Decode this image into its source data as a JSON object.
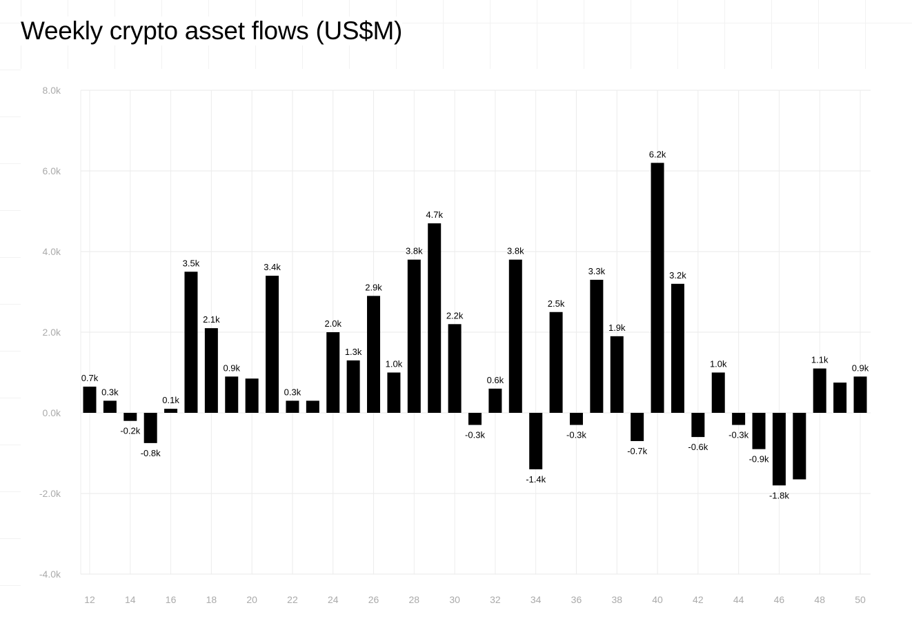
{
  "chart_data": {
    "type": "bar",
    "title": "Weekly crypto asset flows (US$M)",
    "xlabel": "",
    "ylabel": "",
    "ylim": [
      -4.0,
      8.0
    ],
    "yticks": [
      "8.0k",
      "6.0k",
      "4.0k",
      "2.0k",
      "0.0k",
      "-2.0k",
      "-4.0k"
    ],
    "ytick_values": [
      8,
      6,
      4,
      2,
      0,
      -2,
      -4
    ],
    "xticks": [
      "12",
      "14",
      "16",
      "18",
      "20",
      "22",
      "24",
      "26",
      "28",
      "30",
      "32",
      "34",
      "36",
      "38",
      "40",
      "42",
      "44",
      "46",
      "48",
      "50"
    ],
    "grid": true,
    "bar_color": "#000000",
    "categories": [
      "12",
      "13",
      "14",
      "15",
      "16",
      "17",
      "18",
      "19",
      "20",
      "21",
      "22",
      "23",
      "24",
      "25",
      "26",
      "27",
      "28",
      "29",
      "30",
      "31",
      "32",
      "33",
      "34",
      "35",
      "36",
      "37",
      "38",
      "39",
      "40",
      "41",
      "42",
      "43",
      "44",
      "45",
      "46",
      "47",
      "48",
      "49",
      "50"
    ],
    "values": [
      0.65,
      0.3,
      -0.2,
      -0.75,
      0.1,
      3.5,
      2.1,
      0.9,
      0.85,
      3.4,
      0.3,
      0.3,
      2.0,
      1.3,
      2.9,
      1.0,
      3.8,
      4.7,
      2.2,
      -0.3,
      0.6,
      3.8,
      -1.4,
      2.5,
      -0.3,
      3.3,
      1.9,
      -0.7,
      6.2,
      3.2,
      -0.6,
      1.0,
      -0.3,
      -0.9,
      -1.8,
      -1.65,
      1.1,
      0.75,
      0.9
    ],
    "data_labels": [
      "0.7k",
      "0.3k",
      "-0.2k",
      "-0.8k",
      "0.1k",
      "3.5k",
      "2.1k",
      "0.9k",
      "",
      "3.4k",
      "0.3k",
      "",
      "2.0k",
      "1.3k",
      "2.9k",
      "1.0k",
      "3.8k",
      "4.7k",
      "2.2k",
      "-0.3k",
      "0.6k",
      "3.8k",
      "-1.4k",
      "2.5k",
      "-0.3k",
      "3.3k",
      "1.9k",
      "-0.7k",
      "6.2k",
      "3.2k",
      "-0.6k",
      "1.0k",
      "-0.3k",
      "-0.9k",
      "-1.8k",
      "",
      "1.1k",
      "",
      "0.9k"
    ]
  }
}
